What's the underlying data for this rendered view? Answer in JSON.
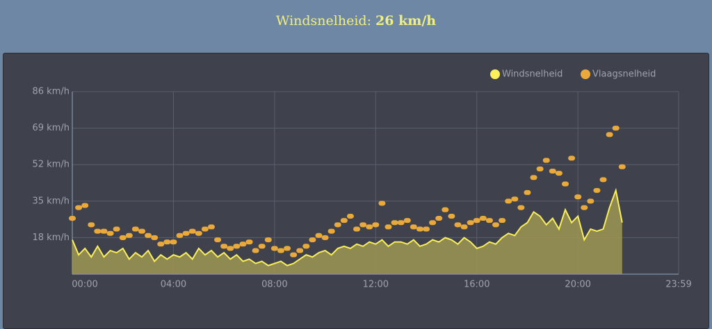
{
  "chart_data": {
    "type": "line",
    "title": "Windsnelheid:",
    "current_value": "26 km/h",
    "x": [
      0,
      15,
      30,
      45,
      60,
      75,
      90,
      105,
      120,
      135,
      150,
      165,
      180,
      195,
      210,
      225,
      240,
      255,
      270,
      285,
      300,
      315,
      330,
      345,
      360,
      375,
      390,
      405,
      420,
      435,
      450,
      465,
      480,
      495,
      510,
      525,
      540,
      555,
      570,
      585,
      600,
      615,
      630,
      645,
      660,
      675,
      690,
      705,
      720,
      735,
      750,
      765,
      780,
      795,
      810,
      825,
      840,
      855,
      870,
      885,
      900,
      915,
      930,
      945,
      960,
      975,
      990,
      1005,
      1020,
      1035,
      1050,
      1065,
      1080,
      1095,
      1110,
      1125,
      1140,
      1155,
      1170,
      1185,
      1200,
      1215,
      1230,
      1245,
      1260,
      1275,
      1290,
      1305
    ],
    "series": [
      {
        "name": "Windsnelheid",
        "color": "#fbef5c",
        "fill": "#9e9752",
        "style": "area",
        "values": [
          17,
          10,
          13,
          9,
          14,
          9,
          12,
          11,
          13,
          8,
          11,
          9,
          12,
          7,
          10,
          8,
          10,
          9,
          11,
          8,
          13,
          10,
          12,
          9,
          11,
          8,
          10,
          7,
          8,
          6,
          7,
          5,
          6,
          7,
          5,
          6,
          8,
          10,
          9,
          11,
          12,
          10,
          13,
          14,
          13,
          15,
          14,
          16,
          15,
          17,
          14,
          16,
          16,
          15,
          17,
          14,
          15,
          17,
          16,
          18,
          17,
          15,
          18,
          16,
          13,
          14,
          16,
          15,
          18,
          20,
          19,
          23,
          25,
          30,
          28,
          24,
          27,
          22,
          31,
          25,
          28,
          17,
          22,
          21,
          22,
          32,
          40,
          25
        ]
      },
      {
        "name": "Vlaagsnelheid",
        "color": "#e9a93b",
        "style": "dots",
        "values": [
          27,
          32,
          33,
          24,
          21,
          21,
          20,
          22,
          18,
          19,
          22,
          21,
          19,
          18,
          15,
          16,
          16,
          19,
          20,
          21,
          20,
          22,
          23,
          17,
          14,
          13,
          14,
          15,
          16,
          12,
          14,
          17,
          13,
          12,
          13,
          10,
          12,
          14,
          17,
          19,
          18,
          21,
          24,
          26,
          28,
          22,
          24,
          23,
          24,
          34,
          23,
          25,
          25,
          26,
          23,
          22,
          22,
          25,
          27,
          31,
          28,
          24,
          23,
          25,
          26,
          27,
          26,
          24,
          26,
          35,
          36,
          32,
          39,
          46,
          50,
          54,
          49,
          48,
          43,
          55,
          37,
          32,
          35,
          40,
          45,
          66,
          69,
          51
        ]
      }
    ],
    "xlim": [
      0,
      1439
    ],
    "xticks": [
      {
        "value": 0,
        "label": "00:00"
      },
      {
        "value": 240,
        "label": "04:00"
      },
      {
        "value": 480,
        "label": "08:00"
      },
      {
        "value": 720,
        "label": "12:00"
      },
      {
        "value": 960,
        "label": "16:00"
      },
      {
        "value": 1200,
        "label": "20:00"
      },
      {
        "value": 1439,
        "label": "23:59"
      }
    ],
    "ylim": [
      1,
      86
    ],
    "yticks": [
      {
        "value": 18,
        "label": "18 km/h"
      },
      {
        "value": 35,
        "label": "35 km/h"
      },
      {
        "value": 52,
        "label": "52 km/h"
      },
      {
        "value": 69,
        "label": "69 km/h"
      },
      {
        "value": 86,
        "label": "86 km/h"
      }
    ],
    "grid": true,
    "legend": "top-right"
  }
}
